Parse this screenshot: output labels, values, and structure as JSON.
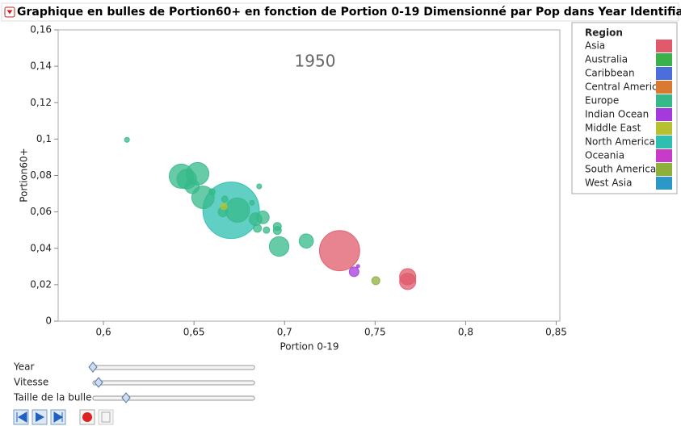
{
  "chart_data": {
    "type": "bubble",
    "title": "Graphique en bulles de Portion60+ en fonction de Portion 0-19 Dimensionné par Pop dans Year Identifiant Country",
    "annotation": "1950",
    "x_label": "Portion 0-19",
    "y_label": "Portion60+",
    "legend_title": "Region",
    "xlim": [
      0.575,
      0.852
    ],
    "ylim": [
      0,
      0.16
    ],
    "xticks": [
      {
        "value": 0.6,
        "label": "0,6"
      },
      {
        "value": 0.65,
        "label": "0,65"
      },
      {
        "value": 0.7,
        "label": "0,7"
      },
      {
        "value": 0.75,
        "label": "0,75"
      },
      {
        "value": 0.8,
        "label": "0,8"
      },
      {
        "value": 0.85,
        "label": "0,85"
      }
    ],
    "yticks": [
      0,
      {
        "value": 0.02,
        "label": "0,02"
      },
      {
        "value": 0.04,
        "label": "0,04"
      },
      {
        "value": 0.06,
        "label": "0,06"
      },
      {
        "value": 0.08,
        "label": "0,08"
      },
      {
        "value": 0.1,
        "label": "0,1"
      },
      {
        "value": 0.12,
        "label": "0,12"
      },
      {
        "value": 0.14,
        "label": "0,14"
      },
      {
        "value": 0.16,
        "label": "0,16"
      }
    ],
    "series": [
      {
        "name": "Asia",
        "color": "#e05a6b",
        "x": [
          0.7304,
          0.768,
          0.768
        ],
        "values": [
          0.0387,
          0.0244,
          0.0218
        ],
        "sizes": [
          80,
          13,
          13
        ]
      },
      {
        "name": "Australia",
        "color": "#3cb04a",
        "x": [],
        "values": [],
        "sizes": []
      },
      {
        "name": "Caribbean",
        "color": "#4a6fdc",
        "x": [],
        "values": [],
        "sizes": []
      },
      {
        "name": "Central America",
        "color": "#d97a30",
        "x": [],
        "values": [],
        "sizes": []
      },
      {
        "name": "Europe",
        "color": "#36b98a",
        "x": [
          0.613,
          0.643,
          0.646,
          0.652,
          0.655,
          0.674,
          0.688,
          0.696,
          0.696,
          0.697,
          0.712,
          0.685,
          0.69,
          0.686,
          0.682,
          0.666,
          0.667,
          0.66,
          0.684,
          0.649
        ],
        "values": [
          0.0996,
          0.0796,
          0.078,
          0.081,
          0.068,
          0.061,
          0.057,
          0.052,
          0.0498,
          0.041,
          0.044,
          0.051,
          0.05,
          0.074,
          0.065,
          0.06,
          0.067,
          0.071,
          0.056,
          0.074
        ],
        "sizes": [
          1.2,
          29,
          19,
          25,
          25,
          29,
          8,
          3.2,
          3.2,
          19,
          10,
          3.2,
          2,
          1.2,
          1.2,
          4.6,
          2,
          2,
          8,
          10
        ]
      },
      {
        "name": "Indian Ocean",
        "color": "#a53adc",
        "x": [
          0.7384,
          0.7406
        ],
        "values": [
          0.0271,
          0.0302
        ],
        "sizes": [
          4.6,
          0.5
        ]
      },
      {
        "name": "Middle East",
        "color": "#b7c12f",
        "x": [
          0.6665
        ],
        "values": [
          0.063
        ],
        "sizes": [
          2
        ]
      },
      {
        "name": "North America",
        "color": "#2ebfb0",
        "x": [
          0.6705
        ],
        "values": [
          0.0609
        ],
        "sizes": [
          158
        ]
      },
      {
        "name": "Oceania",
        "color": "#c83ac8",
        "x": [],
        "values": [],
        "sizes": []
      },
      {
        "name": "South America",
        "color": "#8db03a",
        "x": [
          0.7504
        ],
        "values": [
          0.0222
        ],
        "sizes": [
          3.2
        ]
      },
      {
        "name": "West Asia",
        "color": "#2c98c8",
        "x": [],
        "values": [],
        "sizes": []
      }
    ]
  },
  "controls": {
    "sliders": [
      "Year",
      "Vitesse",
      "Taille de la bulle"
    ]
  }
}
